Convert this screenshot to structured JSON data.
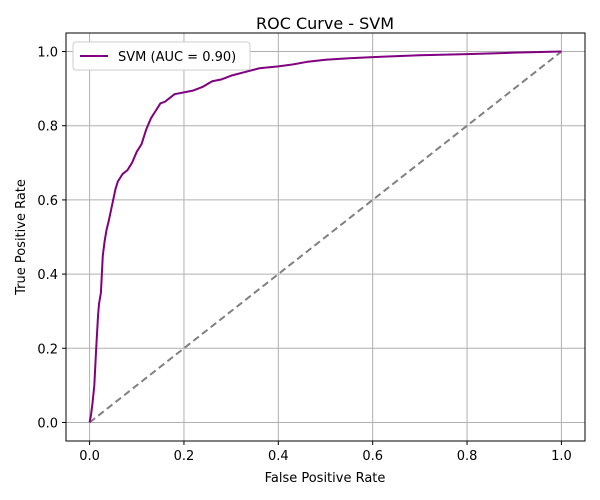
{
  "chart_data": {
    "type": "line",
    "title": "ROC Curve - SVM",
    "xlabel": "False Positive Rate",
    "ylabel": "True Positive Rate",
    "xlim": [
      -0.05,
      1.05
    ],
    "ylim": [
      -0.05,
      1.05
    ],
    "xticks": [
      0.0,
      0.2,
      0.4,
      0.6,
      0.8,
      1.0
    ],
    "yticks": [
      0.0,
      0.2,
      0.4,
      0.6,
      0.8,
      1.0
    ],
    "xtick_labels": [
      "0.0",
      "0.2",
      "0.4",
      "0.6",
      "0.8",
      "1.0"
    ],
    "ytick_labels": [
      "0.0",
      "0.2",
      "0.4",
      "0.6",
      "0.8",
      "1.0"
    ],
    "grid": true,
    "legend_position": "top-left",
    "series": [
      {
        "name": "SVM (AUC = 0.90)",
        "color": "#800080",
        "style": "solid",
        "x": [
          0.0,
          0.003,
          0.006,
          0.01,
          0.014,
          0.018,
          0.02,
          0.024,
          0.028,
          0.032,
          0.036,
          0.04,
          0.045,
          0.05,
          0.055,
          0.06,
          0.065,
          0.07,
          0.08,
          0.09,
          0.1,
          0.11,
          0.12,
          0.13,
          0.14,
          0.15,
          0.16,
          0.17,
          0.18,
          0.2,
          0.22,
          0.24,
          0.26,
          0.28,
          0.3,
          0.33,
          0.36,
          0.4,
          0.43,
          0.46,
          0.5,
          0.55,
          0.6,
          0.7,
          0.8,
          0.9,
          1.0
        ],
        "y": [
          0.0,
          0.02,
          0.05,
          0.1,
          0.2,
          0.29,
          0.32,
          0.35,
          0.45,
          0.49,
          0.52,
          0.54,
          0.57,
          0.6,
          0.63,
          0.65,
          0.66,
          0.67,
          0.68,
          0.7,
          0.73,
          0.75,
          0.79,
          0.82,
          0.84,
          0.86,
          0.865,
          0.875,
          0.885,
          0.89,
          0.895,
          0.905,
          0.92,
          0.925,
          0.935,
          0.945,
          0.955,
          0.96,
          0.965,
          0.972,
          0.978,
          0.982,
          0.985,
          0.99,
          0.993,
          0.997,
          1.0
        ]
      },
      {
        "name": "",
        "color": "#808080",
        "style": "dashed",
        "x": [
          0.0,
          1.0
        ],
        "y": [
          0.0,
          1.0
        ]
      }
    ]
  }
}
